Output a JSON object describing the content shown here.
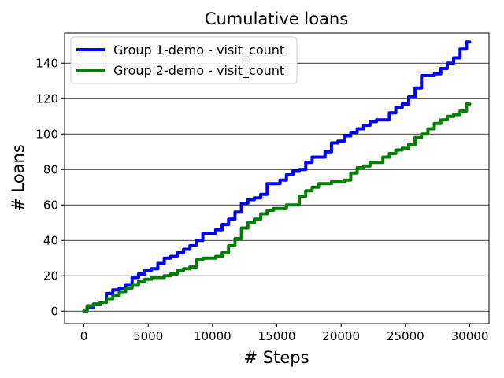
{
  "chart_data": {
    "type": "line",
    "title": "Cumulative loans",
    "xlabel": "# Steps",
    "ylabel": "# Loans",
    "xlim": [
      -1500,
      31500
    ],
    "ylim": [
      -7,
      157
    ],
    "xticks": [
      0,
      5000,
      10000,
      15000,
      20000,
      25000,
      30000
    ],
    "xtick_labels": [
      "0",
      "5000",
      "10000",
      "15000",
      "20000",
      "25000",
      "30000"
    ],
    "yticks": [
      0,
      20,
      40,
      60,
      80,
      100,
      120,
      140
    ],
    "ytick_labels": [
      "0",
      "20",
      "40",
      "60",
      "80",
      "100",
      "120",
      "140"
    ],
    "grid": "horizontal",
    "legend_position": "top-left",
    "series": [
      {
        "name": "Group 1-demo - visit_count",
        "color": "#0000ff",
        "x": [
          0,
          500,
          1000,
          1500,
          2000,
          2500,
          3000,
          3500,
          4000,
          4500,
          5000,
          5500,
          6000,
          6500,
          7000,
          7500,
          8000,
          8500,
          9000,
          9500,
          10000,
          10500,
          11000,
          11500,
          12000,
          12500,
          13000,
          13500,
          14000,
          14500,
          15000,
          15500,
          16000,
          16500,
          17000,
          17500,
          18000,
          18500,
          19000,
          19500,
          20000,
          20500,
          21000,
          21500,
          22000,
          22500,
          23000,
          23500,
          24000,
          24500,
          25000,
          25500,
          26000,
          26500,
          27000,
          27500,
          28000,
          28500,
          29000,
          29500,
          30000
        ],
        "y": [
          0,
          2,
          4,
          5,
          10,
          12,
          13,
          15,
          19,
          21,
          23,
          24,
          27,
          30,
          31,
          33,
          35,
          37,
          40,
          44,
          44,
          46,
          49,
          52,
          56,
          61,
          63,
          64,
          66,
          72,
          72,
          74,
          77,
          79,
          80,
          84,
          87,
          87,
          90,
          95,
          96,
          99,
          101,
          103,
          105,
          107,
          108,
          108,
          112,
          115,
          117,
          121,
          126,
          133,
          133,
          134,
          137,
          140,
          143,
          148,
          152
        ]
      },
      {
        "name": "Group 2-demo - visit_count",
        "color": "#008000",
        "x": [
          0,
          500,
          1000,
          1500,
          2000,
          2500,
          3000,
          3500,
          4000,
          4500,
          5000,
          5500,
          6000,
          6500,
          7000,
          7500,
          8000,
          8500,
          9000,
          9500,
          10000,
          10500,
          11000,
          11500,
          12000,
          12500,
          13000,
          13500,
          14000,
          14500,
          15000,
          15500,
          16000,
          16500,
          17000,
          17500,
          18000,
          18500,
          19000,
          19500,
          20000,
          20500,
          21000,
          21500,
          22000,
          22500,
          23000,
          23500,
          24000,
          24500,
          25000,
          25500,
          26000,
          26500,
          27000,
          27500,
          28000,
          28500,
          29000,
          29500,
          30000
        ],
        "y": [
          0,
          3,
          4,
          5,
          7,
          9,
          11,
          13,
          15,
          17,
          18,
          19,
          19,
          20,
          21,
          23,
          24,
          25,
          29,
          30,
          30,
          31,
          33,
          37,
          41,
          47,
          50,
          52,
          55,
          57,
          58,
          58,
          60,
          60,
          65,
          68,
          70,
          72,
          72,
          73,
          73,
          74,
          78,
          81,
          82,
          84,
          84,
          87,
          89,
          91,
          92,
          94,
          98,
          100,
          103,
          106,
          108,
          110,
          111,
          113,
          117
        ]
      }
    ]
  }
}
